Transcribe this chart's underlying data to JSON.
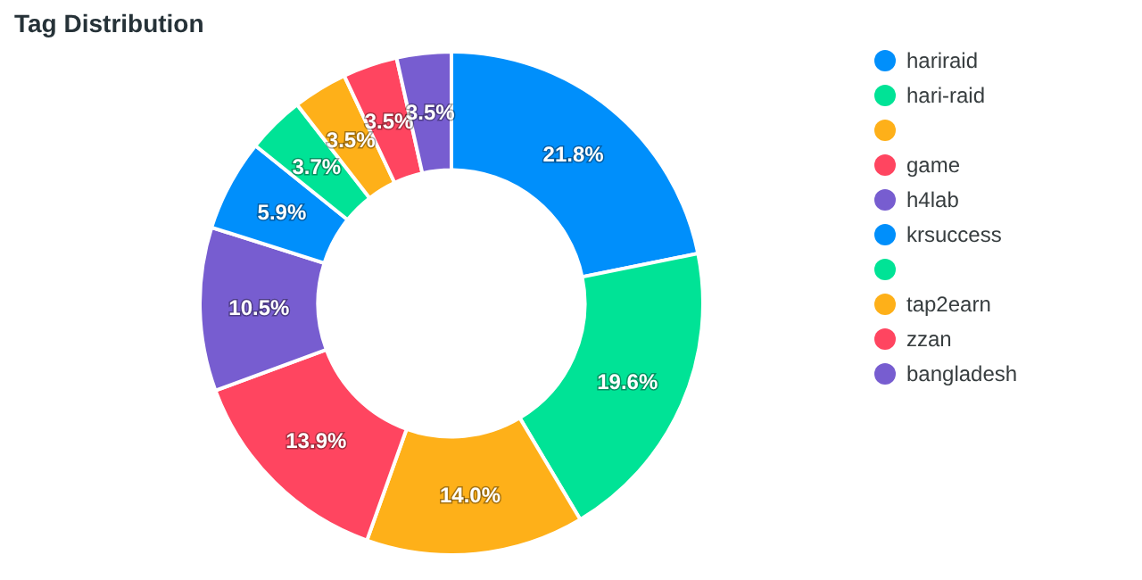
{
  "chart_data": {
    "type": "donut",
    "title": "Tag Distribution",
    "categories": [
      "hariraid",
      "hari-raid",
      null,
      "game",
      "h4lab",
      "krsuccess",
      null,
      "tap2earn",
      "zzan",
      "bangladesh"
    ],
    "values": [
      21.8,
      19.6,
      14.0,
      13.9,
      10.5,
      5.9,
      3.7,
      3.5,
      3.5,
      3.5
    ],
    "value_labels": [
      "21.8%",
      "19.6%",
      "14.0%",
      "13.9%",
      "10.5%",
      "5.9%",
      "3.7%",
      "3.5%",
      "3.5%",
      "3.5%"
    ],
    "colors": [
      "#008ffb",
      "#00e396",
      "#feb019",
      "#ff4560",
      "#775dd0",
      "#008ffb",
      "#00e396",
      "#feb019",
      "#ff4560",
      "#775dd0"
    ],
    "legend": "right"
  }
}
